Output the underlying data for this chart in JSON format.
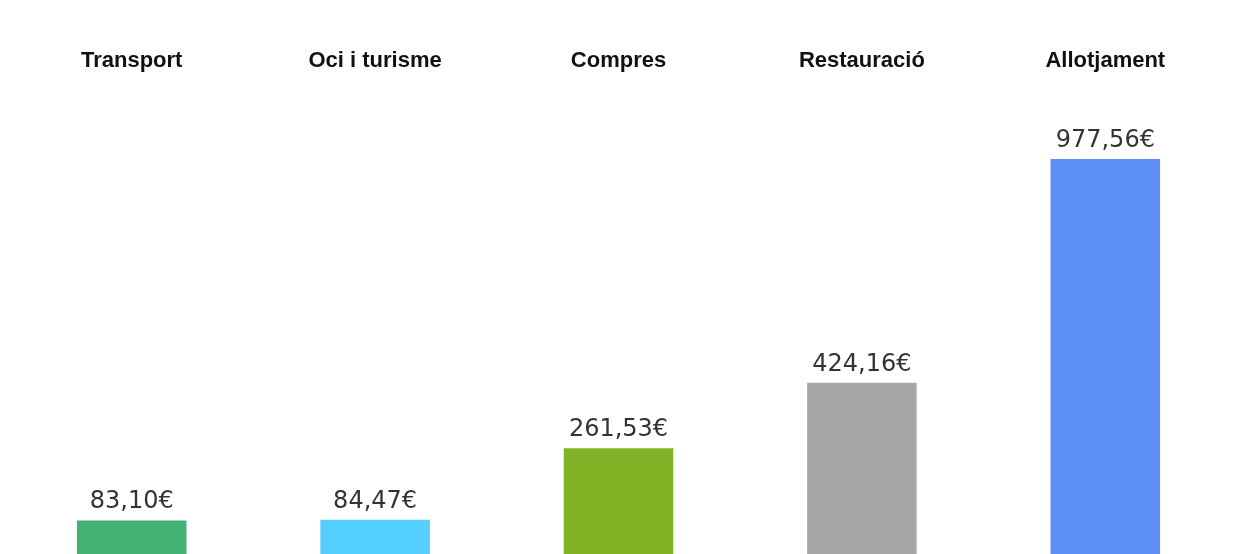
{
  "chart_data": {
    "type": "bar",
    "categories": [
      "Transport",
      "Oci i turisme",
      "Compres",
      "Restauració",
      "Allotjament"
    ],
    "values": [
      83.1,
      84.47,
      261.53,
      424.16,
      977.56
    ],
    "colors": [
      "#42b373",
      "#54cfff",
      "#82b226",
      "#a6a6a6",
      "#5f8ff9"
    ],
    "value_labels": [
      "83,10€",
      "84,47€",
      "261,53€",
      "424,16€",
      "977,56€"
    ]
  }
}
